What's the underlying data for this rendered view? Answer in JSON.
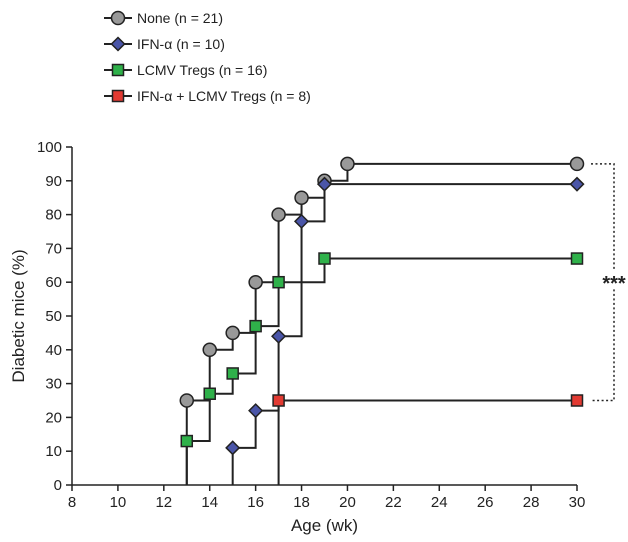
{
  "chart_data": {
    "type": "line",
    "subtype": "step",
    "xlabel": "Age (wk)",
    "ylabel": "Diabetic mice (%)",
    "xlim": [
      8,
      30
    ],
    "ylim": [
      0,
      100
    ],
    "xticks": [
      "8",
      "10",
      "12",
      "14",
      "16",
      "18",
      "20",
      "22",
      "24",
      "26",
      "28",
      "30"
    ],
    "yticks": [
      "0",
      "10",
      "20",
      "30",
      "40",
      "50",
      "60",
      "70",
      "80",
      "90",
      "100"
    ],
    "grid": false,
    "legend_position": "top-left",
    "series": [
      {
        "name": "None",
        "n_label": "n = 21",
        "marker": "circle",
        "color": "#999999",
        "points": [
          [
            13,
            25
          ],
          [
            14,
            40
          ],
          [
            15,
            45
          ],
          [
            16,
            60
          ],
          [
            17,
            80
          ],
          [
            18,
            85
          ],
          [
            19,
            90
          ],
          [
            20,
            95
          ],
          [
            30,
            95
          ]
        ]
      },
      {
        "name": "IFN-α",
        "n_label": "n = 10",
        "marker": "diamond",
        "color": "#4a55a8",
        "points": [
          [
            15,
            11
          ],
          [
            16,
            22
          ],
          [
            17,
            44
          ],
          [
            18,
            78
          ],
          [
            19,
            89
          ],
          [
            30,
            89
          ]
        ]
      },
      {
        "name": "LCMV Tregs",
        "n_label": "n = 16",
        "marker": "square",
        "color": "#2fb14a",
        "points": [
          [
            13,
            13
          ],
          [
            14,
            27
          ],
          [
            15,
            33
          ],
          [
            16,
            47
          ],
          [
            17,
            60
          ],
          [
            19,
            67
          ],
          [
            30,
            67
          ]
        ]
      },
      {
        "name": "IFN-α + LCMV Tregs",
        "n_label": "n = 8",
        "marker": "square",
        "color": "#e23a32",
        "points": [
          [
            17,
            25
          ],
          [
            30,
            25
          ]
        ]
      }
    ],
    "annotations": [
      {
        "text": "***",
        "between": [
          "None",
          "IFN-α + LCMV Tregs"
        ],
        "at_x": 30
      }
    ]
  }
}
